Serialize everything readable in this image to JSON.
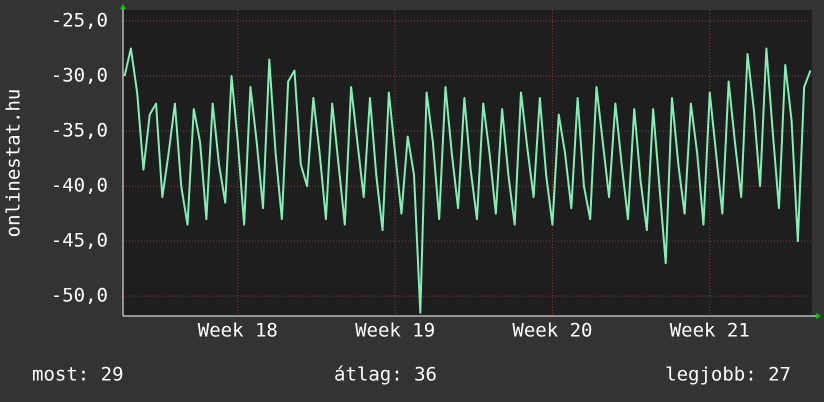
{
  "chart_data": {
    "type": "line",
    "y_label": "onlinestat.hu",
    "legend_items": [
      "most: 29",
      "átlag: 36",
      "legjobb: 27"
    ],
    "x": [
      17.28,
      17.32,
      17.36,
      17.4,
      17.44,
      17.48,
      17.52,
      17.56,
      17.6,
      17.64,
      17.68,
      17.72,
      17.76,
      17.8,
      17.84,
      17.88,
      17.92,
      17.96,
      18.0,
      18.04,
      18.08,
      18.12,
      18.16,
      18.2,
      18.24,
      18.28,
      18.32,
      18.36,
      18.4,
      18.44,
      18.48,
      18.52,
      18.56,
      18.6,
      18.64,
      18.68,
      18.72,
      18.76,
      18.8,
      18.84,
      18.88,
      18.92,
      18.96,
      19.0,
      19.04,
      19.08,
      19.12,
      19.16,
      19.2,
      19.24,
      19.28,
      19.32,
      19.36,
      19.4,
      19.44,
      19.48,
      19.52,
      19.56,
      19.6,
      19.64,
      19.68,
      19.72,
      19.76,
      19.8,
      19.84,
      19.88,
      19.92,
      19.96,
      20.0,
      20.04,
      20.08,
      20.12,
      20.16,
      20.2,
      20.24,
      20.28,
      20.32,
      20.36,
      20.4,
      20.44,
      20.48,
      20.52,
      20.56,
      20.6,
      20.64,
      20.68,
      20.72,
      20.76,
      20.8,
      20.84,
      20.88,
      20.92,
      20.96,
      21.0,
      21.04,
      21.08,
      21.12,
      21.16,
      21.2,
      21.24,
      21.28,
      21.32,
      21.36,
      21.4,
      21.44,
      21.48,
      21.52,
      21.56,
      21.6,
      21.64
    ],
    "series": [
      {
        "name": "onlinestat.hu",
        "color": "#80f0b4",
        "values": [
          -30,
          -27.5,
          -31.5,
          -38.5,
          -33.5,
          -32.5,
          -41,
          -37,
          -32.5,
          -40,
          -43.5,
          -33,
          -36,
          -43,
          -32.5,
          -38,
          -41.5,
          -30,
          -36,
          -43.5,
          -31,
          -36,
          -42,
          -28.5,
          -37,
          -43,
          -30.5,
          -29.5,
          -38,
          -40,
          -32,
          -37,
          -43,
          -32.5,
          -38,
          -43.5,
          -31,
          -36,
          -41,
          -32,
          -39,
          -44,
          -31.5,
          -37,
          -42.5,
          -35.5,
          -39,
          -51.5,
          -31.5,
          -36,
          -43,
          -31,
          -37,
          -42,
          -32,
          -38.5,
          -43,
          -32.5,
          -37,
          -42.5,
          -33,
          -39,
          -43.5,
          -31.5,
          -36.5,
          -41,
          -32,
          -39,
          -43.5,
          -33.5,
          -37,
          -42,
          -32,
          -40,
          -43,
          -31,
          -36,
          -41,
          -32.5,
          -38,
          -43,
          -33,
          -39.5,
          -44,
          -33,
          -40,
          -47,
          -32,
          -38,
          -42.5,
          -32.5,
          -37,
          -43.5,
          -31.5,
          -37,
          -42.5,
          -30.5,
          -36,
          -41,
          -28,
          -33,
          -40,
          -27.5,
          -35,
          -42,
          -29,
          -34,
          -45,
          -31,
          -29.5
        ]
      }
    ],
    "xlim": [
      17.27,
      21.65
    ],
    "xticks": [
      {
        "value": 18,
        "label": "Week 18"
      },
      {
        "value": 19,
        "label": "Week 19"
      },
      {
        "value": 20,
        "label": "Week 20"
      },
      {
        "value": 21,
        "label": "Week 21"
      }
    ],
    "ylim": [
      -51.8,
      -24
    ],
    "yticks": [
      {
        "value": -50,
        "label": "-50,0"
      },
      {
        "value": -45,
        "label": "-45,0"
      },
      {
        "value": -40,
        "label": "-40,0"
      },
      {
        "value": -35,
        "label": "-35,0"
      },
      {
        "value": -30,
        "label": "-30,0"
      },
      {
        "value": -25,
        "label": "-25,0"
      }
    ],
    "grid": true
  }
}
